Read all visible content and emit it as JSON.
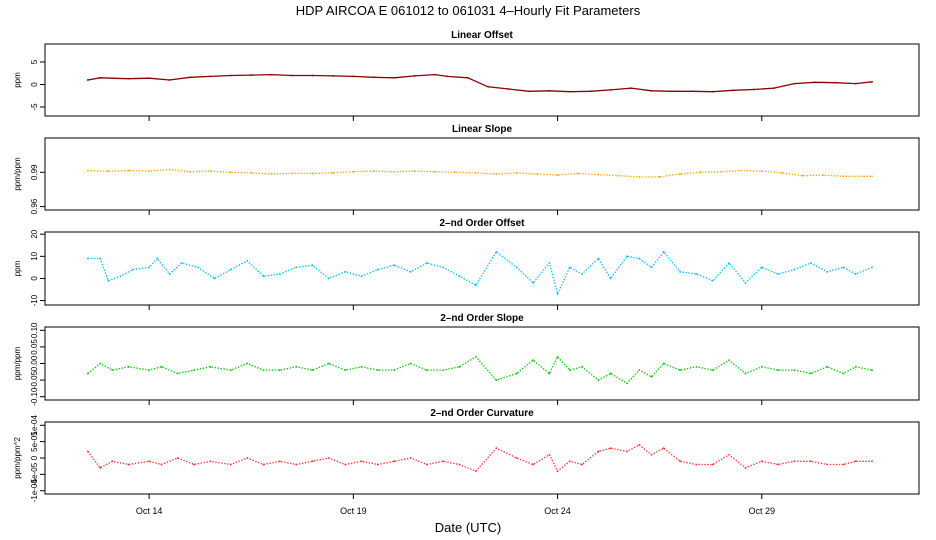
{
  "title": "HDP   AIRCOA E   061012 to 061031   4–Hourly Fit Parameters",
  "xlabel": "Date (UTC)",
  "x_ticks": [
    "Oct 14",
    "Oct 19",
    "Oct 24",
    "Oct 29"
  ],
  "chart_data": [
    {
      "type": "line",
      "title": "Linear Offset",
      "ylabel": "ppm",
      "ylim": [
        -7,
        9
      ],
      "y_ticks": [
        "-5",
        "0",
        "5"
      ],
      "y_tick_values": [
        -5,
        0,
        5
      ],
      "color": "#8b0000",
      "style": "solid",
      "x_days": [
        12.5,
        12.8,
        13.5,
        14.0,
        14.5,
        15.0,
        15.5,
        16.0,
        16.5,
        17.0,
        17.5,
        18.0,
        18.5,
        19.0,
        19.5,
        20.0,
        20.5,
        21.0,
        21.3,
        21.8,
        22.3,
        22.8,
        23.3,
        23.8,
        24.3,
        24.8,
        25.3,
        25.8,
        26.3,
        26.8,
        27.3,
        27.8,
        28.3,
        28.8,
        29.3,
        29.8,
        30.3,
        30.8,
        31.3,
        31.7
      ],
      "values": [
        1.0,
        1.5,
        1.3,
        1.4,
        1.0,
        1.6,
        1.8,
        2.0,
        2.1,
        2.2,
        2.0,
        2.0,
        1.9,
        1.8,
        1.6,
        1.5,
        1.9,
        2.2,
        1.8,
        1.5,
        -0.5,
        -1.0,
        -1.5,
        -1.4,
        -1.6,
        -1.5,
        -1.2,
        -0.8,
        -1.4,
        -1.5,
        -1.5,
        -1.6,
        -1.3,
        -1.1,
        -0.8,
        0.2,
        0.5,
        0.4,
        0.2,
        0.6
      ]
    },
    {
      "type": "line",
      "title": "Linear Slope",
      "ylabel": "ppm/ppm",
      "ylim": [
        0.957,
        1.02
      ],
      "y_ticks": [
        "0.96",
        "0.99"
      ],
      "y_tick_values": [
        0.96,
        0.99
      ],
      "color": "#ffa500",
      "style": "dotted",
      "x_days": [
        12.5,
        13.0,
        13.5,
        14.0,
        14.5,
        15.0,
        15.5,
        16.0,
        16.5,
        17.0,
        17.5,
        18.0,
        18.5,
        19.0,
        19.5,
        20.0,
        20.5,
        21.0,
        21.5,
        22.0,
        22.5,
        23.0,
        23.5,
        24.0,
        24.5,
        25.0,
        25.5,
        26.0,
        26.5,
        27.0,
        27.5,
        28.0,
        28.5,
        29.0,
        29.5,
        30.0,
        30.5,
        31.0,
        31.5,
        31.7
      ],
      "values": [
        0.9915,
        0.991,
        0.9915,
        0.991,
        0.9925,
        0.9905,
        0.991,
        0.99,
        0.9895,
        0.9885,
        0.989,
        0.989,
        0.9895,
        0.9905,
        0.991,
        0.9905,
        0.991,
        0.9905,
        0.99,
        0.9895,
        0.9885,
        0.9895,
        0.9885,
        0.9875,
        0.989,
        0.988,
        0.987,
        0.986,
        0.986,
        0.9885,
        0.99,
        0.9905,
        0.9915,
        0.991,
        0.9895,
        0.987,
        0.9875,
        0.9865,
        0.9865,
        0.9865
      ]
    },
    {
      "type": "line",
      "title": "2–nd Order Offset",
      "ylabel": "ppm",
      "ylim": [
        -12,
        21
      ],
      "y_ticks": [
        "-10",
        "0",
        "10",
        "20"
      ],
      "y_tick_values": [
        -10,
        0,
        10,
        20
      ],
      "color": "#00bfff",
      "style": "dotted",
      "x_days": [
        12.5,
        12.8,
        13.0,
        13.3,
        13.6,
        14.0,
        14.2,
        14.5,
        14.8,
        15.2,
        15.6,
        16.0,
        16.4,
        16.8,
        17.2,
        17.6,
        18.0,
        18.4,
        18.8,
        19.2,
        19.6,
        20.0,
        20.4,
        20.8,
        21.2,
        21.6,
        22.0,
        22.5,
        23.0,
        23.4,
        23.8,
        24.0,
        24.3,
        24.6,
        25.0,
        25.3,
        25.7,
        26.0,
        26.3,
        26.6,
        27.0,
        27.4,
        27.8,
        28.2,
        28.6,
        29.0,
        29.4,
        29.8,
        30.2,
        30.6,
        31.0,
        31.3,
        31.7
      ],
      "values": [
        9,
        9,
        -1,
        1,
        4,
        5,
        9,
        2,
        7,
        5,
        0,
        4,
        8,
        1,
        2,
        5,
        6,
        0,
        3,
        1,
        4,
        6,
        3,
        7,
        5,
        1,
        -3,
        12,
        5,
        -2,
        7,
        -7,
        5,
        2,
        9,
        0,
        10,
        9,
        5,
        12,
        3,
        2,
        -1,
        7,
        -2,
        5,
        2,
        4,
        7,
        3,
        5,
        2,
        5
      ]
    },
    {
      "type": "line",
      "title": "2–nd Order Slope",
      "ylabel": "ppm/ppm",
      "ylim": [
        -0.11,
        0.11
      ],
      "y_ticks": [
        "-0.10",
        "-0.05",
        "0.00",
        "0.05",
        "0.10"
      ],
      "y_tick_values": [
        -0.1,
        -0.05,
        0.0,
        0.05,
        0.1
      ],
      "color": "#00cc00",
      "style": "dotted",
      "x_days": [
        12.5,
        12.8,
        13.1,
        13.5,
        14.0,
        14.3,
        14.7,
        15.1,
        15.5,
        16.0,
        16.4,
        16.8,
        17.2,
        17.6,
        18.0,
        18.4,
        18.8,
        19.2,
        19.6,
        20.0,
        20.4,
        20.8,
        21.2,
        21.6,
        22.0,
        22.5,
        23.0,
        23.4,
        23.8,
        24.0,
        24.3,
        24.6,
        25.0,
        25.3,
        25.7,
        26.0,
        26.3,
        26.6,
        27.0,
        27.4,
        27.8,
        28.2,
        28.6,
        29.0,
        29.4,
        29.8,
        30.2,
        30.6,
        31.0,
        31.3,
        31.7
      ],
      "values": [
        -0.03,
        0.0,
        -0.02,
        -0.01,
        -0.02,
        -0.01,
        -0.03,
        -0.02,
        -0.01,
        -0.02,
        0.0,
        -0.02,
        -0.02,
        -0.01,
        -0.02,
        0.0,
        -0.02,
        -0.01,
        -0.02,
        -0.02,
        0.0,
        -0.02,
        -0.02,
        -0.01,
        0.02,
        -0.05,
        -0.03,
        0.01,
        -0.03,
        0.02,
        -0.02,
        -0.01,
        -0.05,
        -0.03,
        -0.06,
        -0.02,
        -0.04,
        0.0,
        -0.02,
        -0.01,
        -0.02,
        0.01,
        -0.03,
        -0.01,
        -0.02,
        -0.02,
        -0.03,
        -0.01,
        -0.03,
        -0.01,
        -0.02
      ]
    },
    {
      "type": "line",
      "title": "2–nd Order Curvature",
      "ylabel": "ppm/ppm^2",
      "ylim": [
        -0.00011,
        0.00011
      ],
      "y_ticks": [
        "-1e-04",
        "-5e-05",
        "0",
        "5e-05",
        "1e-04"
      ],
      "y_tick_values": [
        -0.0001,
        -5e-05,
        0,
        5e-05,
        0.0001
      ],
      "color": "#ff3030",
      "style": "dotted",
      "x_days": [
        12.5,
        12.8,
        13.1,
        13.5,
        14.0,
        14.3,
        14.7,
        15.1,
        15.5,
        16.0,
        16.4,
        16.8,
        17.2,
        17.6,
        18.0,
        18.4,
        18.8,
        19.2,
        19.6,
        20.0,
        20.4,
        20.8,
        21.2,
        21.6,
        22.0,
        22.5,
        23.0,
        23.4,
        23.8,
        24.0,
        24.3,
        24.6,
        25.0,
        25.3,
        25.7,
        26.0,
        26.3,
        26.6,
        27.0,
        27.4,
        27.8,
        28.2,
        28.6,
        29.0,
        29.4,
        29.8,
        30.2,
        30.6,
        31.0,
        31.3,
        31.7
      ],
      "values": [
        2e-05,
        -3e-05,
        -1e-05,
        -2e-05,
        -1e-05,
        -2e-05,
        0.0,
        -2e-05,
        -1e-05,
        -2e-05,
        0.0,
        -2e-05,
        -1e-05,
        -2e-05,
        -1e-05,
        0.0,
        -2e-05,
        -1e-05,
        -2e-05,
        -1e-05,
        0.0,
        -2e-05,
        -1e-05,
        -2e-05,
        -4e-05,
        3e-05,
        0.0,
        -2e-05,
        1e-05,
        -4e-05,
        -1e-05,
        -2e-05,
        2e-05,
        3e-05,
        2e-05,
        4e-05,
        1e-05,
        3e-05,
        -1e-05,
        -2e-05,
        -2e-05,
        1e-05,
        -3e-05,
        -1e-05,
        -2e-05,
        -1e-05,
        -1e-05,
        -2e-05,
        -2e-05,
        -1e-05,
        -1e-05
      ]
    }
  ]
}
